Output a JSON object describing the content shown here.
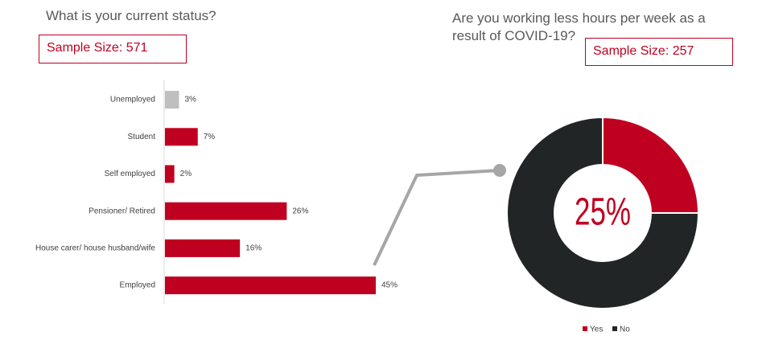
{
  "chart_data": [
    {
      "type": "bar",
      "orientation": "horizontal",
      "title": "What is your current status?",
      "sample_size": "Sample Size: 571",
      "categories": [
        "Unemployed",
        "Student",
        "Self employed",
        "Pensioner/ Retired",
        "House carer/ house husband/wife",
        "Employed"
      ],
      "values": [
        3,
        7,
        2,
        26,
        16,
        45
      ],
      "value_labels": [
        "3%",
        "7%",
        "2%",
        "26%",
        "16%",
        "45%"
      ],
      "colors": [
        "#bfbfbf",
        "#c00020",
        "#c00020",
        "#c00020",
        "#c00020",
        "#c00020"
      ]
    },
    {
      "type": "donut",
      "title": "Are you working less hours per week as a result of COVID-19?",
      "sample_size": "Sample Size: 257",
      "center_label": "25%",
      "series": [
        {
          "name": "Yes",
          "color": "#c00020",
          "value": 25
        },
        {
          "name": "No",
          "color": "#222526",
          "value": 75
        }
      ]
    }
  ]
}
